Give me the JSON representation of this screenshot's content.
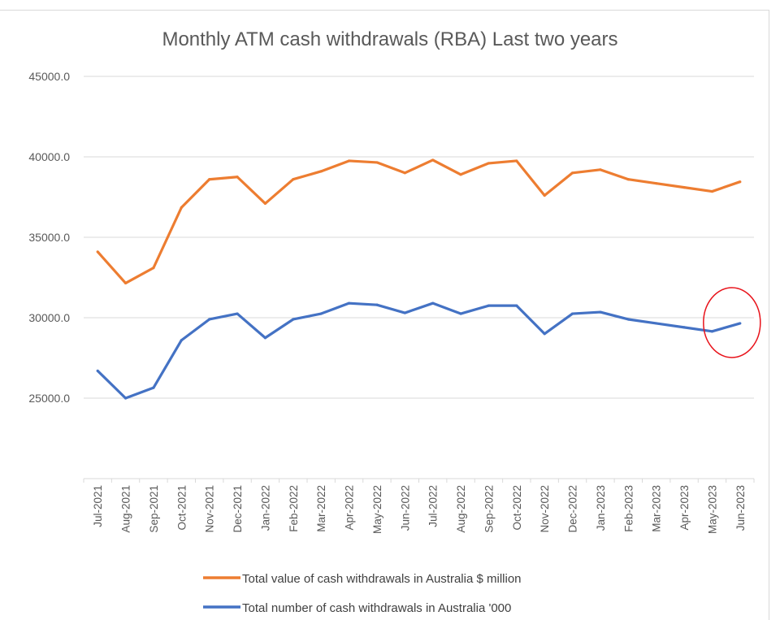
{
  "chart_data": {
    "type": "line",
    "title": "Monthly ATM cash withdrawals (RBA) Last two years",
    "xlabel": "",
    "ylabel": "",
    "ylim": [
      20000,
      45000
    ],
    "yticks": [
      20000,
      25000,
      30000,
      35000,
      40000,
      45000
    ],
    "ytick_labels": [
      "",
      "25000.0",
      "30000.0",
      "35000.0",
      "40000.0",
      "45000.0"
    ],
    "grid": true,
    "legend_position": "bottom",
    "categories": [
      "Jul-2021",
      "Aug-2021",
      "Sep-2021",
      "Oct-2021",
      "Nov-2021",
      "Dec-2021",
      "Jan-2022",
      "Feb-2022",
      "Mar-2022",
      "Apr-2022",
      "May-2022",
      "Jun-2022",
      "Jul-2022",
      "Aug-2022",
      "Sep-2022",
      "Oct-2022",
      "Nov-2022",
      "Dec-2022",
      "Jan-2023",
      "Feb-2023",
      "Mar-2023",
      "Apr-2023",
      "May-2023",
      "Jun-2023"
    ],
    "series": [
      {
        "name": "Total value of cash withdrawals in Australia $ million",
        "color": "#ed7d31",
        "values": [
          34100,
          32150,
          33100,
          36850,
          38600,
          38750,
          37100,
          38600,
          39100,
          39750,
          39650,
          39000,
          39800,
          38900,
          39600,
          39750,
          37600,
          39000,
          39200,
          38600,
          38350,
          38100,
          37850,
          38450
        ]
      },
      {
        "name": "Total number of cash withdrawals in Australia  '000",
        "color": "#4472c4",
        "values": [
          26700,
          25000,
          25650,
          28600,
          29900,
          30250,
          28750,
          29900,
          30250,
          30900,
          30800,
          30300,
          30900,
          30250,
          30750,
          30750,
          29000,
          30250,
          30350,
          29900,
          29650,
          29400,
          29150,
          29650
        ]
      }
    ],
    "annotations": [
      {
        "type": "ellipse",
        "color": "#e8131b",
        "highlights": "Jun-2023"
      }
    ]
  }
}
